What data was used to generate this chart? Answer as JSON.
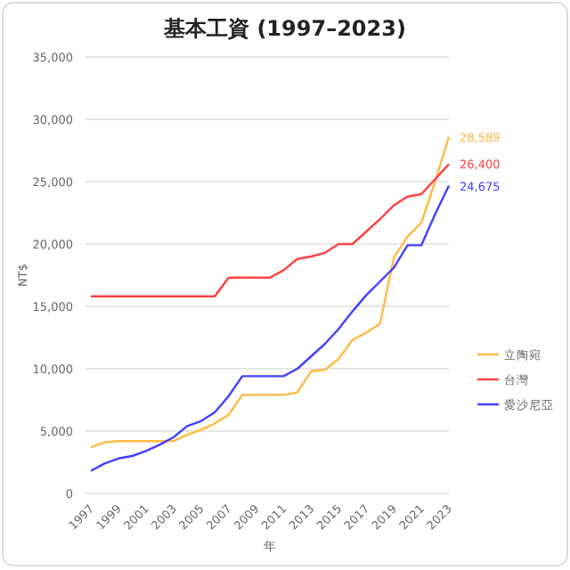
{
  "chart_data": {
    "type": "line",
    "title": "基本工資 (1997–2023)",
    "xlabel": "年",
    "ylabel": "NT$",
    "x": [
      1997,
      1998,
      1999,
      2000,
      2001,
      2002,
      2003,
      2004,
      2005,
      2006,
      2007,
      2008,
      2009,
      2010,
      2011,
      2012,
      2013,
      2014,
      2015,
      2016,
      2017,
      2018,
      2019,
      2020,
      2021,
      2022,
      2023
    ],
    "series": [
      {
        "name": "立陶宛",
        "color": "#ffb940",
        "values": [
          3700,
          4100,
          4200,
          4200,
          4200,
          4200,
          4200,
          4700,
          5100,
          5600,
          6300,
          7900,
          7900,
          7900,
          7900,
          8100,
          9800,
          9900,
          10800,
          12300,
          12900,
          13600,
          18900,
          20600,
          21700,
          25000,
          28589
        ],
        "value_labels": [
          null,
          null,
          null,
          null,
          null,
          null,
          null,
          null,
          null,
          null,
          null,
          null,
          null,
          null,
          null,
          null,
          null,
          null,
          null,
          null,
          null,
          null,
          null,
          null,
          null,
          null,
          "28,589"
        ]
      },
      {
        "name": "台灣",
        "color": "#ff4040",
        "values": [
          15800,
          15800,
          15800,
          15800,
          15800,
          15800,
          15800,
          15800,
          15800,
          15800,
          17300,
          17300,
          17300,
          17300,
          17900,
          18800,
          19000,
          19300,
          20000,
          20000,
          21000,
          22000,
          23100,
          23800,
          24000,
          25200,
          26400
        ],
        "value_labels": [
          null,
          null,
          null,
          null,
          null,
          null,
          null,
          null,
          null,
          null,
          null,
          null,
          null,
          null,
          null,
          null,
          null,
          null,
          null,
          null,
          null,
          null,
          null,
          null,
          null,
          null,
          "26,400"
        ]
      },
      {
        "name": "愛沙尼亞",
        "color": "#4040ff",
        "values": [
          1800,
          2400,
          2800,
          3000,
          3400,
          3900,
          4500,
          5400,
          5800,
          6500,
          7800,
          9400,
          9400,
          9400,
          9400,
          10000,
          11000,
          12000,
          13200,
          14600,
          15900,
          17000,
          18100,
          19900,
          19900,
          22400,
          24675
        ],
        "value_labels": [
          null,
          null,
          null,
          null,
          null,
          null,
          null,
          null,
          null,
          null,
          null,
          null,
          null,
          null,
          null,
          null,
          null,
          null,
          null,
          null,
          null,
          null,
          null,
          null,
          null,
          null,
          "24,675"
        ]
      }
    ],
    "xlim": [
      1997,
      2023
    ],
    "xticks": [
      1997,
      1999,
      2001,
      2003,
      2005,
      2007,
      2009,
      2011,
      2013,
      2015,
      2017,
      2019,
      2021,
      2023
    ],
    "ylim": [
      0,
      35000
    ],
    "yticks": [
      {
        "value": 0,
        "label": "0"
      },
      {
        "value": 5000,
        "label": "5,000"
      },
      {
        "value": 10000,
        "label": "10,000"
      },
      {
        "value": 15000,
        "label": "15,000"
      },
      {
        "value": 20000,
        "label": "20,000"
      },
      {
        "value": 25000,
        "label": "25,000"
      },
      {
        "value": 30000,
        "label": "30,000"
      },
      {
        "value": 35000,
        "label": "35,000"
      }
    ],
    "grid": "y",
    "legend": "right",
    "marker": "none",
    "line_style": "solid"
  }
}
